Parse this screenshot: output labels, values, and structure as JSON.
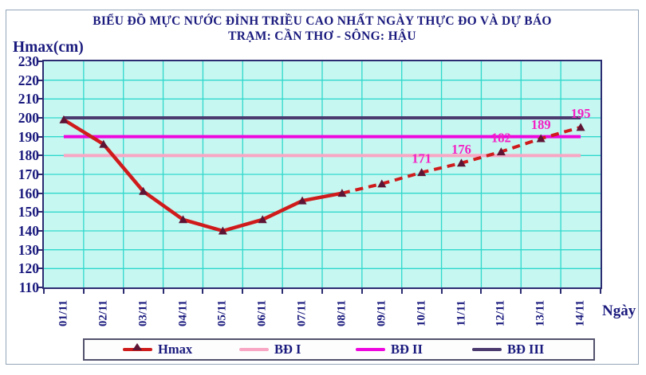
{
  "title": {
    "line1": "BIỂU ĐỒ MỰC NƯỚC ĐỈNH TRIỀU CAO NHẤT NGÀY THỰC ĐO VÀ DỰ BÁO",
    "line2": "TRẠM: CẦN THƠ - SÔNG: HẬU"
  },
  "axes": {
    "y_label": "Hmax(cm)",
    "x_label": "Ngày"
  },
  "legend": {
    "items": [
      {
        "label": "Hmax",
        "color": "#cf1b1b",
        "marker_color": "#5e1535",
        "marker": "triangle-up"
      },
      {
        "label": "BĐ I",
        "color": "#f8a6c4"
      },
      {
        "label": "BĐ II",
        "color": "#ee06de"
      },
      {
        "label": "BĐ III",
        "color": "#4a3a6e"
      }
    ]
  },
  "colors": {
    "text_navy": "#1a1a7e",
    "plot_background": "#c7f7f1",
    "grid": "#2fd8cc",
    "plot_border": "#2c2c72",
    "data_label": "#f31fc4",
    "hmax_line": "#cf1b1b",
    "marker": "#5e1535",
    "bd1": "#f8a6c4",
    "bd2": "#ee06de",
    "bd3": "#4a3a6e"
  },
  "chart_data": {
    "type": "line",
    "title": "BIỂU ĐỒ MỰC NƯỚC ĐỈNH TRIỀU CAO NHẤT NGÀY THỰC ĐO VÀ DỰ BÁO — TRẠM: CẦN THƠ - SÔNG: HẬU",
    "categories": [
      "01/11",
      "02/11",
      "03/11",
      "04/11",
      "05/11",
      "06/11",
      "07/11",
      "08/11",
      "09/11",
      "10/11",
      "11/11",
      "12/11",
      "13/11",
      "14/11"
    ],
    "series": [
      {
        "name": "Hmax",
        "values": [
          199,
          186,
          161,
          146,
          140,
          146,
          156,
          160,
          165,
          171,
          176,
          182,
          189,
          195
        ],
        "color": "#cf1b1b",
        "marker": "triangle-up",
        "marker_color": "#5e1535",
        "measured_solid_through": "08/11",
        "forecast_dashed_from": "09/11"
      }
    ],
    "reference_lines": [
      {
        "name": "BĐ I",
        "value": 180,
        "color": "#f8a6c4"
      },
      {
        "name": "BĐ II",
        "value": 190,
        "color": "#ee06de"
      },
      {
        "name": "BĐ III",
        "value": 200,
        "color": "#4a3a6e"
      }
    ],
    "data_labels": [
      {
        "category": "10/11",
        "value": 171
      },
      {
        "category": "11/11",
        "value": 176
      },
      {
        "category": "12/11",
        "value": 182
      },
      {
        "category": "13/11",
        "value": 189
      },
      {
        "category": "14/11",
        "value": 195
      }
    ],
    "data_label_color": "#f31fc4",
    "xlabel": "Ngày",
    "ylabel": "Hmax(cm)",
    "ylim": [
      110,
      230
    ],
    "ytick_step": 10,
    "grid": true,
    "grid_color": "#2fd8cc",
    "plot_bg": "#c7f7f1",
    "legend_position": "bottom"
  }
}
